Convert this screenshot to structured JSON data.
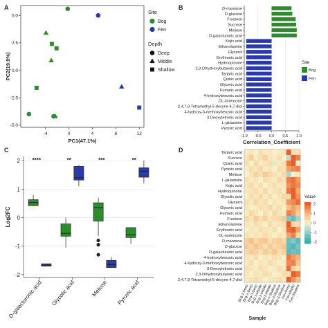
{
  "panels": {
    "a": "A",
    "b": "B",
    "c": "C",
    "d": "D"
  },
  "chart_data": [
    {
      "panel": "A",
      "type": "scatter",
      "xlabel": "PC1(47.1%)",
      "ylabel": "PC2(19.9%)",
      "xlim": [
        -8.2,
        12.8
      ],
      "ylim": [
        -5.2,
        5.9
      ],
      "xticks": [
        "-4",
        "0",
        "4",
        "8",
        "12"
      ],
      "yticks": [
        "-5.0",
        "-2.5",
        "0.0",
        "2.5",
        "5.0"
      ],
      "legend_site_title": "Site",
      "legend_depth_title": "Depth",
      "colors": {
        "Bog": "#2e8b2e",
        "Fen": "#2a3aa8",
        "neutral": "#111111"
      },
      "legend_site": [
        {
          "label": "Bog",
          "color": "#2e8b2e"
        },
        {
          "label": "Fen",
          "color": "#2a3aa8"
        }
      ],
      "legend_depth": [
        {
          "label": "Deep",
          "shape": "circle"
        },
        {
          "label": "Middle",
          "shape": "triangle"
        },
        {
          "label": "Shallow",
          "shape": "square"
        }
      ],
      "points": [
        {
          "x": -0.2,
          "y": 5.6,
          "site": "Bog",
          "depth": "Deep"
        },
        {
          "x": -6.8,
          "y": -4.0,
          "site": "Bog",
          "depth": "Deep"
        },
        {
          "x": -2.6,
          "y": -4.2,
          "site": "Bog",
          "depth": "Deep"
        },
        {
          "x": -3.9,
          "y": 3.4,
          "site": "Bog",
          "depth": "Middle"
        },
        {
          "x": -3.0,
          "y": 0.9,
          "site": "Bog",
          "depth": "Middle"
        },
        {
          "x": -2.3,
          "y": -4.2,
          "site": "Bog",
          "depth": "Middle"
        },
        {
          "x": -2.9,
          "y": 2.4,
          "site": "Bog",
          "depth": "Shallow"
        },
        {
          "x": -2.1,
          "y": 2.0,
          "site": "Bog",
          "depth": "Shallow"
        },
        {
          "x": -5.5,
          "y": -1.6,
          "site": "Bog",
          "depth": "Shallow"
        },
        {
          "x": 5.0,
          "y": 5.0,
          "site": "Fen",
          "depth": "Deep"
        },
        {
          "x": 9.0,
          "y": -1.5,
          "site": "Fen",
          "depth": "Middle"
        },
        {
          "x": 12.0,
          "y": -3.4,
          "site": "Fen",
          "depth": "Shallow"
        }
      ]
    },
    {
      "panel": "B",
      "type": "bar",
      "orientation": "horizontal",
      "xlabel": "Correlation_Coefficient",
      "xlim": [
        -1.0,
        1.0
      ],
      "xticks": [
        "-1.0",
        "-0.5",
        "0.0",
        "0.5",
        "1.0"
      ],
      "legend_title": "Site",
      "legend": [
        {
          "label": "Bog",
          "color": "#2e8b2e"
        },
        {
          "label": "Fen",
          "color": "#2a3aa8"
        }
      ],
      "categories": [
        "D-mannose",
        "D-glucose",
        "Fructose",
        "Sucrose",
        "Meliose",
        "D-galacturonic acid",
        "Kojic acid",
        "Ethanolamine",
        "Glycerol",
        "Erythronic acid",
        "Hydroquinone",
        "2,3-Dihydroxybutanoic acid",
        "Tartaric acid",
        "Quinic acid",
        "Glyceric acid",
        "Fumaric acid",
        "4-hydroxybenzoic acid",
        "DL-isoleucine",
        "2,4,7,9-Tetramethyl-5-decyne-4,7-diol",
        "4-hydroxy-3-methoxybenzoic acid",
        "3-Deoxytetronic acid",
        "L-glutamine",
        "Pyruvic acid"
      ],
      "values": [
        0.73,
        0.76,
        0.88,
        0.9,
        0.92,
        0.92,
        -0.93,
        -0.93,
        -0.93,
        -0.93,
        -0.93,
        -0.93,
        -0.93,
        -0.93,
        -0.93,
        -0.93,
        -0.93,
        -0.93,
        -0.93,
        -0.93,
        -0.93,
        -0.93,
        -0.93
      ],
      "sites": [
        "Bog",
        "Bog",
        "Bog",
        "Bog",
        "Bog",
        "Bog",
        "Fen",
        "Fen",
        "Fen",
        "Fen",
        "Fen",
        "Fen",
        "Fen",
        "Fen",
        "Fen",
        "Fen",
        "Fen",
        "Fen",
        "Fen",
        "Fen",
        "Fen",
        "Fen",
        "Fen"
      ]
    },
    {
      "panel": "C",
      "type": "box",
      "ylabel": "Log2FC",
      "ylim": [
        -2.1,
        2.15
      ],
      "yticks": [
        "-2",
        "-1",
        "0",
        "1",
        "2"
      ],
      "categories": [
        "D-galacturonic acid",
        "Glycolic acid",
        "Meliose",
        "Pyruvic acid"
      ],
      "significance": [
        "****",
        "**",
        "***",
        "**"
      ],
      "boxes": [
        {
          "group": 0,
          "site": "Bog",
          "min": 0.4,
          "q1": 0.42,
          "median": 0.53,
          "q3": 0.63,
          "max": 0.8
        },
        {
          "group": 0,
          "site": "Fen",
          "min": -1.7,
          "q1": -1.7,
          "median": -1.67,
          "q3": -1.62,
          "max": -1.62
        },
        {
          "group": 1,
          "site": "Bog",
          "min": -1.05,
          "q1": -0.65,
          "median": -0.55,
          "q3": -0.22,
          "max": 0.0
        },
        {
          "group": 1,
          "site": "Fen",
          "min": 1.1,
          "q1": 1.32,
          "median": 1.4,
          "q3": 1.8,
          "max": 1.85
        },
        {
          "group": 2,
          "site": "Bog",
          "min": -0.65,
          "q1": -0.12,
          "median": 0.35,
          "q3": 0.52,
          "max": 0.7,
          "outliers": [
            -0.8,
            -0.95,
            -1.3
          ]
        },
        {
          "group": 2,
          "site": "Fen",
          "min": -1.75,
          "q1": -1.75,
          "median": -1.65,
          "q3": -1.5,
          "max": -1.38
        },
        {
          "group": 3,
          "site": "Bog",
          "min": -0.92,
          "q1": -0.7,
          "median": -0.6,
          "q3": -0.35,
          "max": -0.35
        },
        {
          "group": 3,
          "site": "Fen",
          "min": 1.2,
          "q1": 1.42,
          "median": 1.62,
          "q3": 1.75,
          "max": 2.0
        }
      ]
    },
    {
      "panel": "D",
      "type": "heatmap",
      "xlabel": "Sample",
      "legend_title": "Value",
      "scale_ticks": [
        "2",
        "1",
        "0",
        "-1",
        "-2"
      ],
      "rows": [
        "Tartaric acid",
        "Sucrose",
        "Quinic acid",
        "Pyruvic acid",
        "Meliose",
        "L-glutamine",
        "Kojic acid",
        "Hydroquinone",
        "Glycolic acid",
        "Glycerol",
        "Glyceric acid",
        "Fumaric acid",
        "Fructose",
        "Ethanolamine",
        "Erythronic acid",
        "DL-isoleucine",
        "D-mannose",
        "D-glucose",
        "D-galacturonic acid",
        "4-hydroxybenzoic acid",
        "4-hydroxy-3-methoxybenzoic acid",
        "3-Deoxytetronic acid",
        "2,3-Dihydroxybutanoic acid",
        "2,4,7,9-Tetramethyl-5-decyne-4,7-diol"
      ],
      "columns": [
        "Bog-1-Deep",
        "Bog-2-Deep",
        "Bog-3-Deep",
        "Bog-1-Middle",
        "Bog-2-Middle",
        "Bog-3-Middle",
        "Bog-1-Shallow",
        "Bog-2-Shallow",
        "Bog-3-Shallow",
        "Fen-Deep",
        "Fen-Middle",
        "Fen-Shallow"
      ],
      "values": [
        [
          0.1,
          0.2,
          0.0,
          0.3,
          0.1,
          0.2,
          0.0,
          0.1,
          0.2,
          2.0,
          0.3,
          0.2
        ],
        [
          0.2,
          0.6,
          0.1,
          0.3,
          0.5,
          0.2,
          0.1,
          0.3,
          0.0,
          -0.6,
          2.2,
          1.6
        ],
        [
          0.3,
          0.0,
          0.4,
          0.1,
          0.2,
          0.3,
          -0.2,
          0.1,
          0.3,
          1.7,
          2.1,
          0.0
        ],
        [
          0.1,
          0.3,
          0.2,
          0.4,
          0.1,
          0.2,
          0.0,
          0.3,
          0.2,
          1.2,
          1.5,
          1.6
        ],
        [
          0.0,
          0.2,
          0.5,
          0.3,
          0.6,
          0.4,
          0.2,
          0.1,
          0.4,
          -0.8,
          0.0,
          0.1
        ],
        [
          0.3,
          0.1,
          0.2,
          0.0,
          0.3,
          0.2,
          0.1,
          0.4,
          0.2,
          1.6,
          1.8,
          1.3
        ],
        [
          0.2,
          0.4,
          0.1,
          0.3,
          0.0,
          0.2,
          0.3,
          0.1,
          0.2,
          1.4,
          1.7,
          1.5
        ],
        [
          0.1,
          0.2,
          0.3,
          0.1,
          0.4,
          0.1,
          0.2,
          0.3,
          0.1,
          1.7,
          2.2,
          1.1
        ],
        [
          0.0,
          0.3,
          0.2,
          0.4,
          0.1,
          0.3,
          0.0,
          0.2,
          0.4,
          0.4,
          2.0,
          1.4
        ],
        [
          0.3,
          0.1,
          0.4,
          0.2,
          0.3,
          0.0,
          0.2,
          0.1,
          0.2,
          1.3,
          1.5,
          1.8
        ],
        [
          0.2,
          0.0,
          0.1,
          0.3,
          0.2,
          0.4,
          0.1,
          0.3,
          0.0,
          0.8,
          1.2,
          0.9
        ],
        [
          0.1,
          0.4,
          0.2,
          0.0,
          0.3,
          0.1,
          0.4,
          0.2,
          0.1,
          1.6,
          1.3,
          0.6
        ],
        [
          0.4,
          0.2,
          0.6,
          0.3,
          0.5,
          0.2,
          0.3,
          0.4,
          0.6,
          -1.2,
          -1.5,
          -0.8
        ],
        [
          0.2,
          0.1,
          0.3,
          0.2,
          0.0,
          0.3,
          0.1,
          0.2,
          0.3,
          2.2,
          0.4,
          0.3
        ],
        [
          0.0,
          0.2,
          0.1,
          0.3,
          0.2,
          0.1,
          0.3,
          0.0,
          0.2,
          1.8,
          2.0,
          1.2
        ],
        [
          0.3,
          0.1,
          0.2,
          0.1,
          0.3,
          0.2,
          0.0,
          0.2,
          0.1,
          1.2,
          1.6,
          0.4
        ],
        [
          0.5,
          0.8,
          0.4,
          0.6,
          0.7,
          0.3,
          0.5,
          0.6,
          0.4,
          -1.4,
          -1.2,
          -1.6
        ],
        [
          0.6,
          0.4,
          0.7,
          0.5,
          0.3,
          0.6,
          0.4,
          0.5,
          0.7,
          -1.5,
          -1.7,
          -1.3
        ],
        [
          0.4,
          0.6,
          0.5,
          0.3,
          0.6,
          0.4,
          0.7,
          0.3,
          0.5,
          -1.6,
          -1.4,
          -1.5
        ],
        [
          0.2,
          0.1,
          0.3,
          0.0,
          0.2,
          0.1,
          0.3,
          0.2,
          0.0,
          1.7,
          1.3,
          1.0
        ],
        [
          0.1,
          0.3,
          0.0,
          0.2,
          0.1,
          0.3,
          0.2,
          0.0,
          0.1,
          1.5,
          1.6,
          0.7
        ],
        [
          0.3,
          0.2,
          0.1,
          0.3,
          0.2,
          0.0,
          0.1,
          0.3,
          0.2,
          1.8,
          0.5,
          0.2
        ],
        [
          0.2,
          0.0,
          0.2,
          0.1,
          0.3,
          0.2,
          0.0,
          0.1,
          0.3,
          0.3,
          2.0,
          1.7
        ],
        [
          0.1,
          0.2,
          0.3,
          0.2,
          0.0,
          0.1,
          0.2,
          0.3,
          0.1,
          2.1,
          1.4,
          0.8
        ]
      ]
    }
  ]
}
